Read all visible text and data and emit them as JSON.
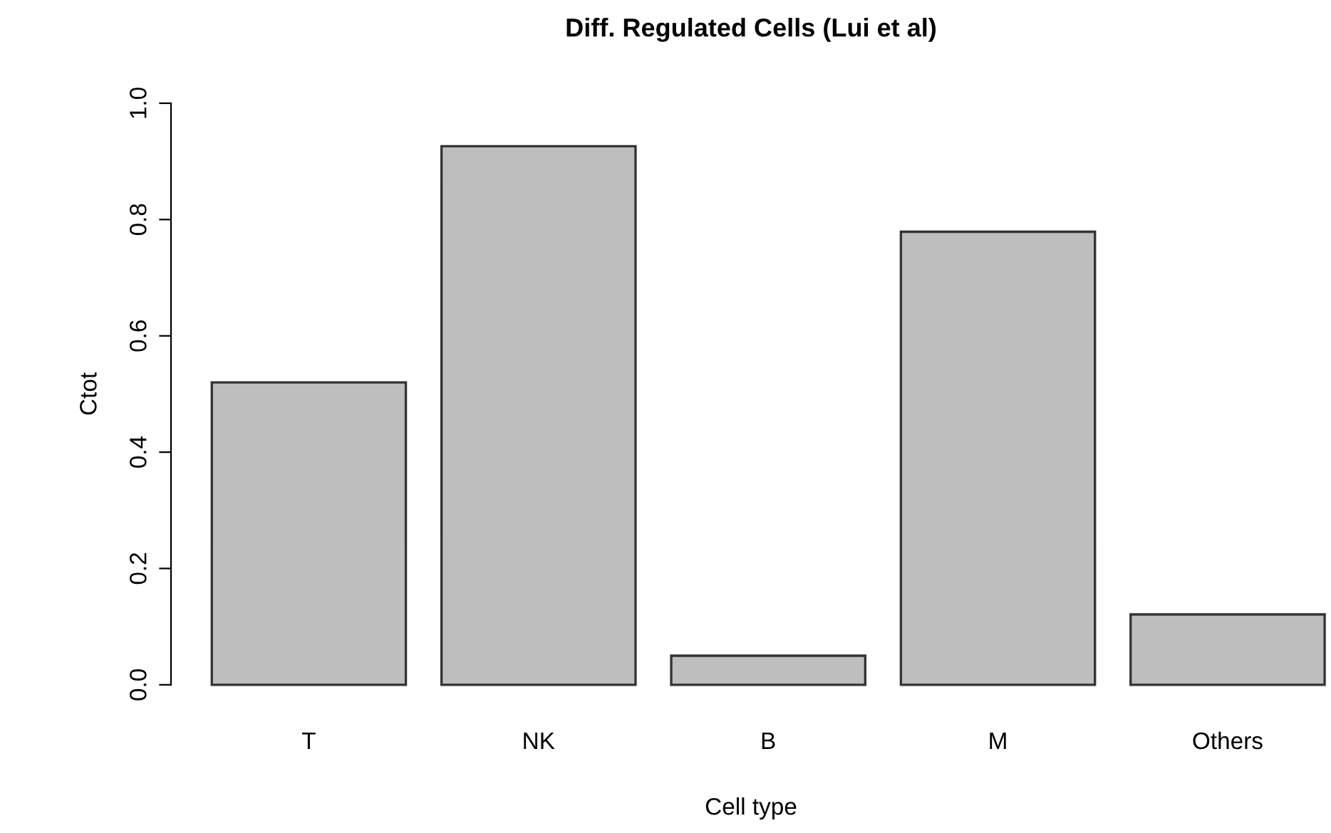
{
  "chart_data": {
    "type": "bar",
    "title": "Diff. Regulated Cells (Lui et al)",
    "xlabel": "Cell type",
    "ylabel": "Ctot",
    "categories": [
      "T",
      "NK",
      "B",
      "M",
      "Others"
    ],
    "values": [
      0.52,
      0.926,
      0.05,
      0.779,
      0.121
    ],
    "color": "#bebebe",
    "ylim": [
      0,
      1
    ],
    "yticks": [
      {
        "value": 0,
        "label": "0.0"
      },
      {
        "value": 0.2,
        "label": "0.2"
      },
      {
        "value": 0.4,
        "label": "0.4"
      },
      {
        "value": 0.6,
        "label": "0.6"
      },
      {
        "value": 0.8,
        "label": "0.8"
      },
      {
        "value": 1,
        "label": "1.0"
      }
    ],
    "grid": false
  }
}
